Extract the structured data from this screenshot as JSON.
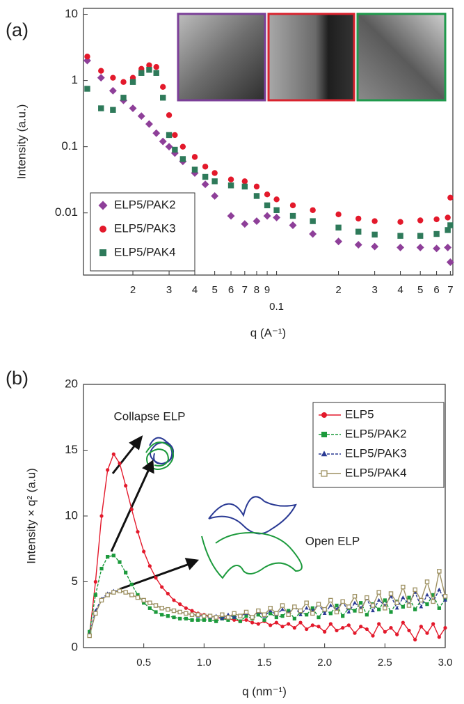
{
  "chart_data": [
    {
      "type": "scatter",
      "panel_label": "(a)",
      "xlabel": "q (A⁻¹)",
      "ylabel": "Intensity (a.u.)",
      "xscale": "log",
      "yscale": "log",
      "xlim": [
        0.0115,
        0.72
      ],
      "ylim": [
        0.00115,
        12.3
      ],
      "xticks": [
        {
          "value": 0.02,
          "label": "2"
        },
        {
          "value": 0.03,
          "label": "3"
        },
        {
          "value": 0.04,
          "label": "4"
        },
        {
          "value": 0.05,
          "label": "5"
        },
        {
          "value": 0.06,
          "label": "6"
        },
        {
          "value": 0.07,
          "label": "7"
        },
        {
          "value": 0.08,
          "label": "8"
        },
        {
          "value": 0.09,
          "label": "9"
        },
        {
          "value": 0.1,
          "label": "0.1"
        },
        {
          "value": 0.2,
          "label": "2"
        },
        {
          "value": 0.3,
          "label": "3"
        },
        {
          "value": 0.4,
          "label": "4"
        },
        {
          "value": 0.5,
          "label": "5"
        },
        {
          "value": 0.6,
          "label": "6"
        },
        {
          "value": 0.7,
          "label": "7"
        }
      ],
      "yticks": [
        10,
        1,
        0.1,
        0.01
      ],
      "legend": "lower left",
      "x": [
        0.012,
        0.014,
        0.016,
        0.018,
        0.02,
        0.022,
        0.024,
        0.026,
        0.028,
        0.03,
        0.032,
        0.035,
        0.04,
        0.045,
        0.05,
        0.06,
        0.07,
        0.08,
        0.09,
        0.1,
        0.12,
        0.15,
        0.2,
        0.25,
        0.3,
        0.4,
        0.5,
        0.6,
        0.68,
        0.7
      ],
      "series": [
        {
          "name": "ELP5/PAK2",
          "color": "#8e3f99",
          "marker": "diamond",
          "values": [
            2,
            1.1,
            0.7,
            0.5,
            0.38,
            0.29,
            0.22,
            0.16,
            0.12,
            0.1,
            0.08,
            0.06,
            0.04,
            0.027,
            0.018,
            0.009,
            0.0068,
            0.0075,
            0.009,
            0.0085,
            0.0065,
            0.0048,
            0.0037,
            0.0033,
            0.0031,
            0.003,
            0.003,
            0.0029,
            0.003,
            0.0018
          ]
        },
        {
          "name": "ELP5/PAK3",
          "color": "#e3192b",
          "marker": "circle",
          "values": [
            2.3,
            1.4,
            1.1,
            0.95,
            1.1,
            1.5,
            1.7,
            1.6,
            0.8,
            0.3,
            0.15,
            0.1,
            0.07,
            0.05,
            0.04,
            0.032,
            0.03,
            0.025,
            0.019,
            0.016,
            0.013,
            0.011,
            0.0095,
            0.0082,
            0.0075,
            0.0073,
            0.0077,
            0.008,
            0.0085,
            0.017
          ]
        },
        {
          "name": "ELP5/PAK4",
          "color": "#2e7a5a",
          "marker": "square",
          "values": [
            0.75,
            0.38,
            0.36,
            0.55,
            0.95,
            1.3,
            1.45,
            1.3,
            0.55,
            0.15,
            0.09,
            0.065,
            0.045,
            0.035,
            0.03,
            0.026,
            0.025,
            0.018,
            0.013,
            0.011,
            0.009,
            0.0075,
            0.006,
            0.0052,
            0.0047,
            0.0045,
            0.0045,
            0.0048,
            0.0055,
            0.0065
          ]
        }
      ]
    },
    {
      "type": "line",
      "panel_label": "(b)",
      "xlabel": "q (nm⁻¹)",
      "ylabel": "Intensity × q² (a.u)",
      "annotations": [
        "Collapse ELP",
        "Open ELP"
      ],
      "xlim": [
        0,
        3
      ],
      "ylim": [
        0,
        20
      ],
      "xticks": [
        0.5,
        {
          "value": 1,
          "label": "1.0"
        },
        1.5,
        {
          "value": 2,
          "label": "2.0"
        },
        2.5,
        {
          "value": 3,
          "label": "3.0"
        }
      ],
      "yticks": [
        0,
        5,
        10,
        15,
        20
      ],
      "legend": "upper right",
      "x": [
        0.05,
        0.1,
        0.15,
        0.2,
        0.25,
        0.3,
        0.35,
        0.4,
        0.45,
        0.5,
        0.55,
        0.6,
        0.65,
        0.7,
        0.75,
        0.8,
        0.85,
        0.9,
        0.95,
        1.0,
        1.05,
        1.1,
        1.15,
        1.2,
        1.25,
        1.3,
        1.35,
        1.4,
        1.45,
        1.5,
        1.55,
        1.6,
        1.65,
        1.7,
        1.75,
        1.8,
        1.85,
        1.9,
        1.95,
        2.0,
        2.05,
        2.1,
        2.15,
        2.2,
        2.25,
        2.3,
        2.35,
        2.4,
        2.45,
        2.5,
        2.55,
        2.6,
        2.65,
        2.7,
        2.75,
        2.8,
        2.85,
        2.9,
        2.95,
        3.0
      ],
      "series": [
        {
          "name": "ELP5",
          "color": "#e3192b",
          "marker": "circle",
          "line_style": "solid",
          "values": [
            1,
            5,
            10,
            13.5,
            14.7,
            14,
            12.3,
            10.5,
            8.8,
            7.3,
            6.2,
            5.3,
            4.6,
            4.1,
            3.6,
            3.3,
            3.0,
            2.8,
            2.6,
            2.5,
            2.4,
            2.3,
            2.2,
            2.2,
            2.1,
            2.0,
            2.1,
            1.9,
            1.8,
            2.0,
            1.7,
            1.9,
            1.6,
            1.8,
            1.5,
            1.9,
            1.4,
            1.7,
            1.6,
            1.2,
            1.8,
            1.3,
            1.5,
            1.7,
            1.1,
            1.6,
            1.4,
            0.9,
            1.8,
            1.2,
            1.5,
            1.0,
            1.9,
            1.3,
            0.6,
            1.6,
            1.1,
            1.8,
            0.8,
            1.5
          ]
        },
        {
          "name": "ELP5/PAK2",
          "color": "#1c9a3c",
          "marker": "square",
          "line_style": "dashed",
          "values": [
            1.2,
            4,
            6,
            6.9,
            7,
            6.5,
            5.7,
            4.8,
            4.0,
            3.4,
            3.0,
            2.7,
            2.5,
            2.4,
            2.3,
            2.2,
            2.2,
            2.1,
            2.1,
            2.1,
            2.1,
            2.0,
            2.2,
            2.1,
            2.3,
            2.0,
            2.4,
            2.2,
            2.5,
            2.1,
            2.6,
            2.3,
            2.4,
            2.8,
            2.2,
            2.7,
            2.5,
            3.0,
            2.3,
            2.9,
            2.6,
            3.2,
            2.4,
            3.0,
            2.8,
            3.4,
            2.5,
            3.3,
            2.9,
            3.6,
            2.7,
            3.5,
            3.1,
            3.8,
            2.9,
            3.6,
            3.3,
            4.0,
            3.0,
            3.7
          ]
        },
        {
          "name": "ELP5/PAK3",
          "color": "#2a3a94",
          "marker": "triangle",
          "line_style": "dashed",
          "values": [
            1.0,
            2.8,
            3.7,
            4.1,
            4.3,
            4.3,
            4.2,
            4.0,
            3.8,
            3.6,
            3.4,
            3.2,
            3.0,
            2.9,
            2.8,
            2.7,
            2.6,
            2.5,
            2.4,
            2.4,
            2.3,
            2.4,
            2.2,
            2.5,
            2.3,
            2.4,
            2.6,
            2.3,
            2.7,
            2.4,
            2.8,
            2.5,
            2.9,
            2.6,
            3.1,
            2.5,
            3.0,
            2.8,
            3.3,
            2.6,
            3.2,
            2.9,
            3.5,
            2.7,
            3.4,
            3.0,
            3.7,
            2.8,
            3.6,
            3.2,
            3.9,
            3.0,
            3.8,
            3.3,
            4.2,
            3.1,
            4.0,
            3.5,
            4.4,
            3.6
          ]
        },
        {
          "name": "ELP5/PAK4",
          "color": "#9e9162",
          "marker": "square-x",
          "line_style": "solid",
          "values": [
            0.9,
            2.6,
            3.6,
            4.0,
            4.2,
            4.3,
            4.2,
            4.0,
            3.8,
            3.6,
            3.4,
            3.2,
            3.0,
            2.9,
            2.8,
            2.7,
            2.6,
            2.5,
            2.5,
            2.4,
            2.4,
            2.3,
            2.5,
            2.3,
            2.6,
            2.4,
            2.7,
            2.3,
            2.8,
            2.5,
            3.0,
            2.6,
            3.2,
            2.5,
            3.1,
            2.8,
            3.4,
            2.6,
            3.3,
            2.9,
            3.6,
            2.7,
            3.5,
            3.1,
            3.9,
            2.8,
            3.8,
            3.2,
            4.2,
            3.0,
            4.1,
            3.4,
            4.6,
            3.2,
            4.4,
            3.6,
            5.0,
            3.5,
            5.8,
            3.9
          ]
        }
      ]
    }
  ]
}
